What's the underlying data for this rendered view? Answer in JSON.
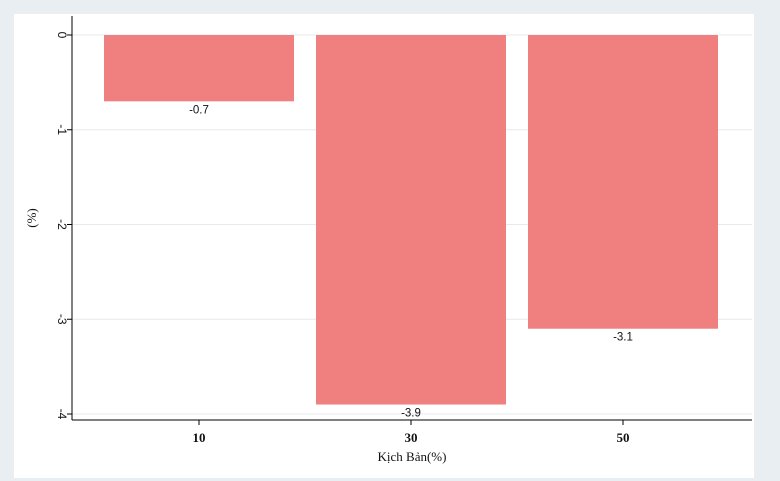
{
  "chart_data": {
    "type": "bar",
    "categories": [
      "10",
      "30",
      "50"
    ],
    "values": [
      -0.7,
      -3.9,
      -3.1
    ],
    "data_labels": [
      "-0.7",
      "-3.9",
      "-3.1"
    ],
    "xlabel": "Kịch Bản(%)",
    "ylabel": "(%)",
    "ylim": [
      -4,
      0
    ],
    "yticks": [
      0,
      -1,
      -2,
      -3,
      -4
    ],
    "ytick_labels": [
      "0",
      "-1",
      "-2",
      "-3",
      "-4"
    ],
    "grid": true,
    "colors": {
      "bar": "#f08080",
      "background": "#e9eef3",
      "plot_background": "#ffffff",
      "grid": "#e6e9ee",
      "axis": "#000000"
    }
  }
}
